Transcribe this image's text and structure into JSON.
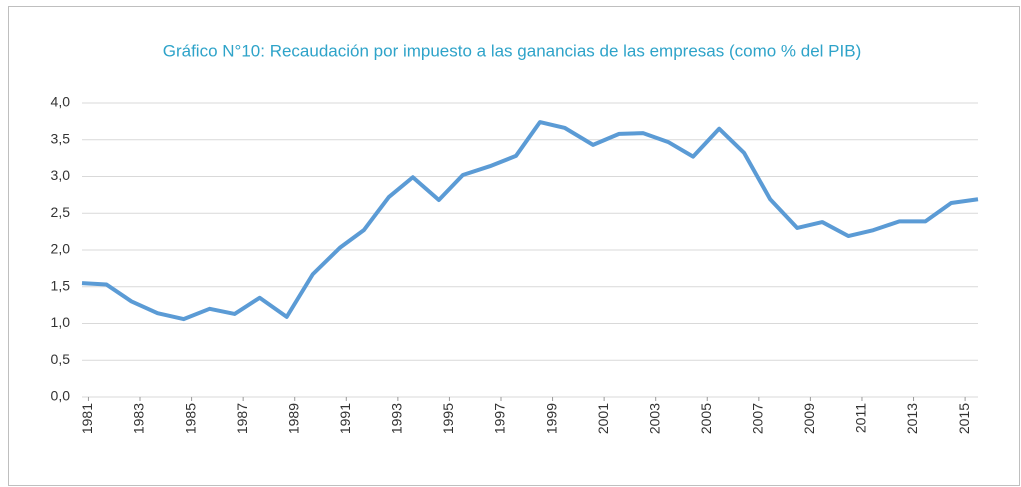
{
  "chart_data": {
    "type": "line",
    "title": "Gráfico N°10: Recaudación por impuesto a las ganancias de las empresas (como % del PIB)",
    "x": [
      1980.75,
      1981.7,
      1982.67,
      1983.68,
      1984.69,
      1985.7,
      1986.67,
      1987.64,
      1988.69,
      1989.7,
      1990.75,
      1991.68,
      1992.65,
      1993.58,
      1994.59,
      1995.52,
      1996.57,
      1997.58,
      1998.51,
      1999.48,
      2000.57,
      2001.58,
      2002.51,
      2003.48,
      2004.45,
      2005.46,
      2006.43,
      2007.44,
      2008.49,
      2009.46,
      2010.47,
      2011.44,
      2012.45,
      2013.46,
      2014.46,
      2015.5
    ],
    "series": [
      {
        "name": "Recaudación",
        "color": "#5b9bd5",
        "values": [
          1.55,
          1.53,
          1.3,
          1.14,
          1.06,
          1.2,
          1.13,
          1.35,
          1.09,
          1.67,
          2.03,
          2.27,
          2.72,
          2.99,
          2.68,
          3.02,
          3.14,
          3.28,
          3.74,
          3.66,
          3.43,
          3.58,
          3.59,
          3.47,
          3.27,
          3.65,
          3.32,
          2.69,
          2.3,
          2.38,
          2.19,
          2.27,
          2.39,
          2.39,
          2.64,
          2.69
        ]
      }
    ],
    "xlim": [
      1980.75,
      2015.5
    ],
    "xticks": [
      1981,
      1983,
      1985,
      1987,
      1989,
      1991,
      1993,
      1995,
      1997,
      1999,
      2001,
      2003,
      2005,
      2007,
      2009,
      2011,
      2013,
      2015
    ],
    "ylim": [
      0,
      4
    ],
    "yticks": [
      {
        "value": 0,
        "label": "0,0"
      },
      {
        "value": 0.5,
        "label": "0,5"
      },
      {
        "value": 1,
        "label": "1,0"
      },
      {
        "value": 1.5,
        "label": "1,5"
      },
      {
        "value": 2,
        "label": "2,0"
      },
      {
        "value": 2.5,
        "label": "2,5"
      },
      {
        "value": 3,
        "label": "3,0"
      },
      {
        "value": 3.5,
        "label": "3,5"
      },
      {
        "value": 4,
        "label": "4,0"
      }
    ],
    "grid": true
  }
}
